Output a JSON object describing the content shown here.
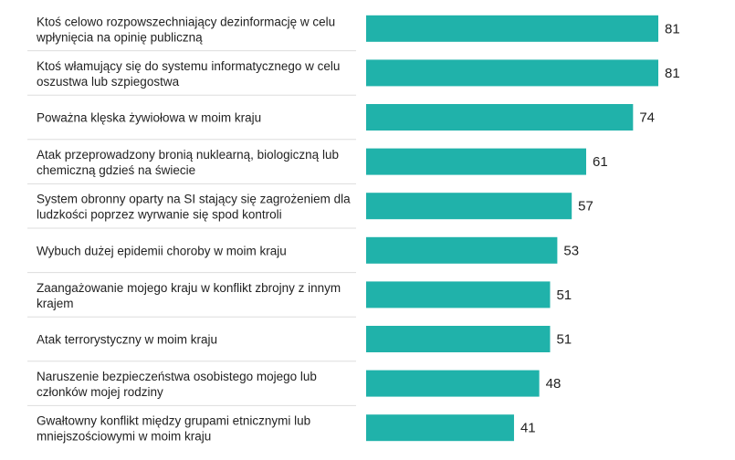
{
  "chart_data": {
    "type": "bar",
    "orientation": "horizontal",
    "title": "",
    "xlabel": "",
    "ylabel": "",
    "xlim": [
      0,
      100
    ],
    "grid": false,
    "bar_color": "#20b2aa",
    "categories": [
      [
        "Ktoś celowo rozpowszechniający dezinformację w celu",
        "wpłynięcia na opinię publiczną"
      ],
      [
        "Ktoś włamujący się do systemu informatycznego w celu",
        "oszustwa lub szpiegostwa"
      ],
      [
        "Poważna klęska żywiołowa w moim kraju"
      ],
      [
        "Atak przeprowadzony bronią nuklearną, biologiczną lub",
        "chemiczną gdzieś na świecie"
      ],
      [
        "System obronny oparty na SI stający się zagrożeniem dla",
        "ludzkości poprzez wyrwanie się spod kontroli"
      ],
      [
        "Wybuch dużej epidemii choroby w moim kraju"
      ],
      [
        "Zaangażowanie mojego kraju w konflikt zbrojny z innym",
        "krajem"
      ],
      [
        "Atak terrorystyczny w moim kraju"
      ],
      [
        "Naruszenie bezpieczeństwa osobistego mojego lub",
        "członków mojej rodziny"
      ],
      [
        "Gwałtowny konflikt między grupami etnicznymi lub",
        "mniejszościowymi w moim kraju"
      ]
    ],
    "values": [
      81,
      81,
      74,
      61,
      57,
      53,
      51,
      51,
      48,
      41
    ]
  }
}
